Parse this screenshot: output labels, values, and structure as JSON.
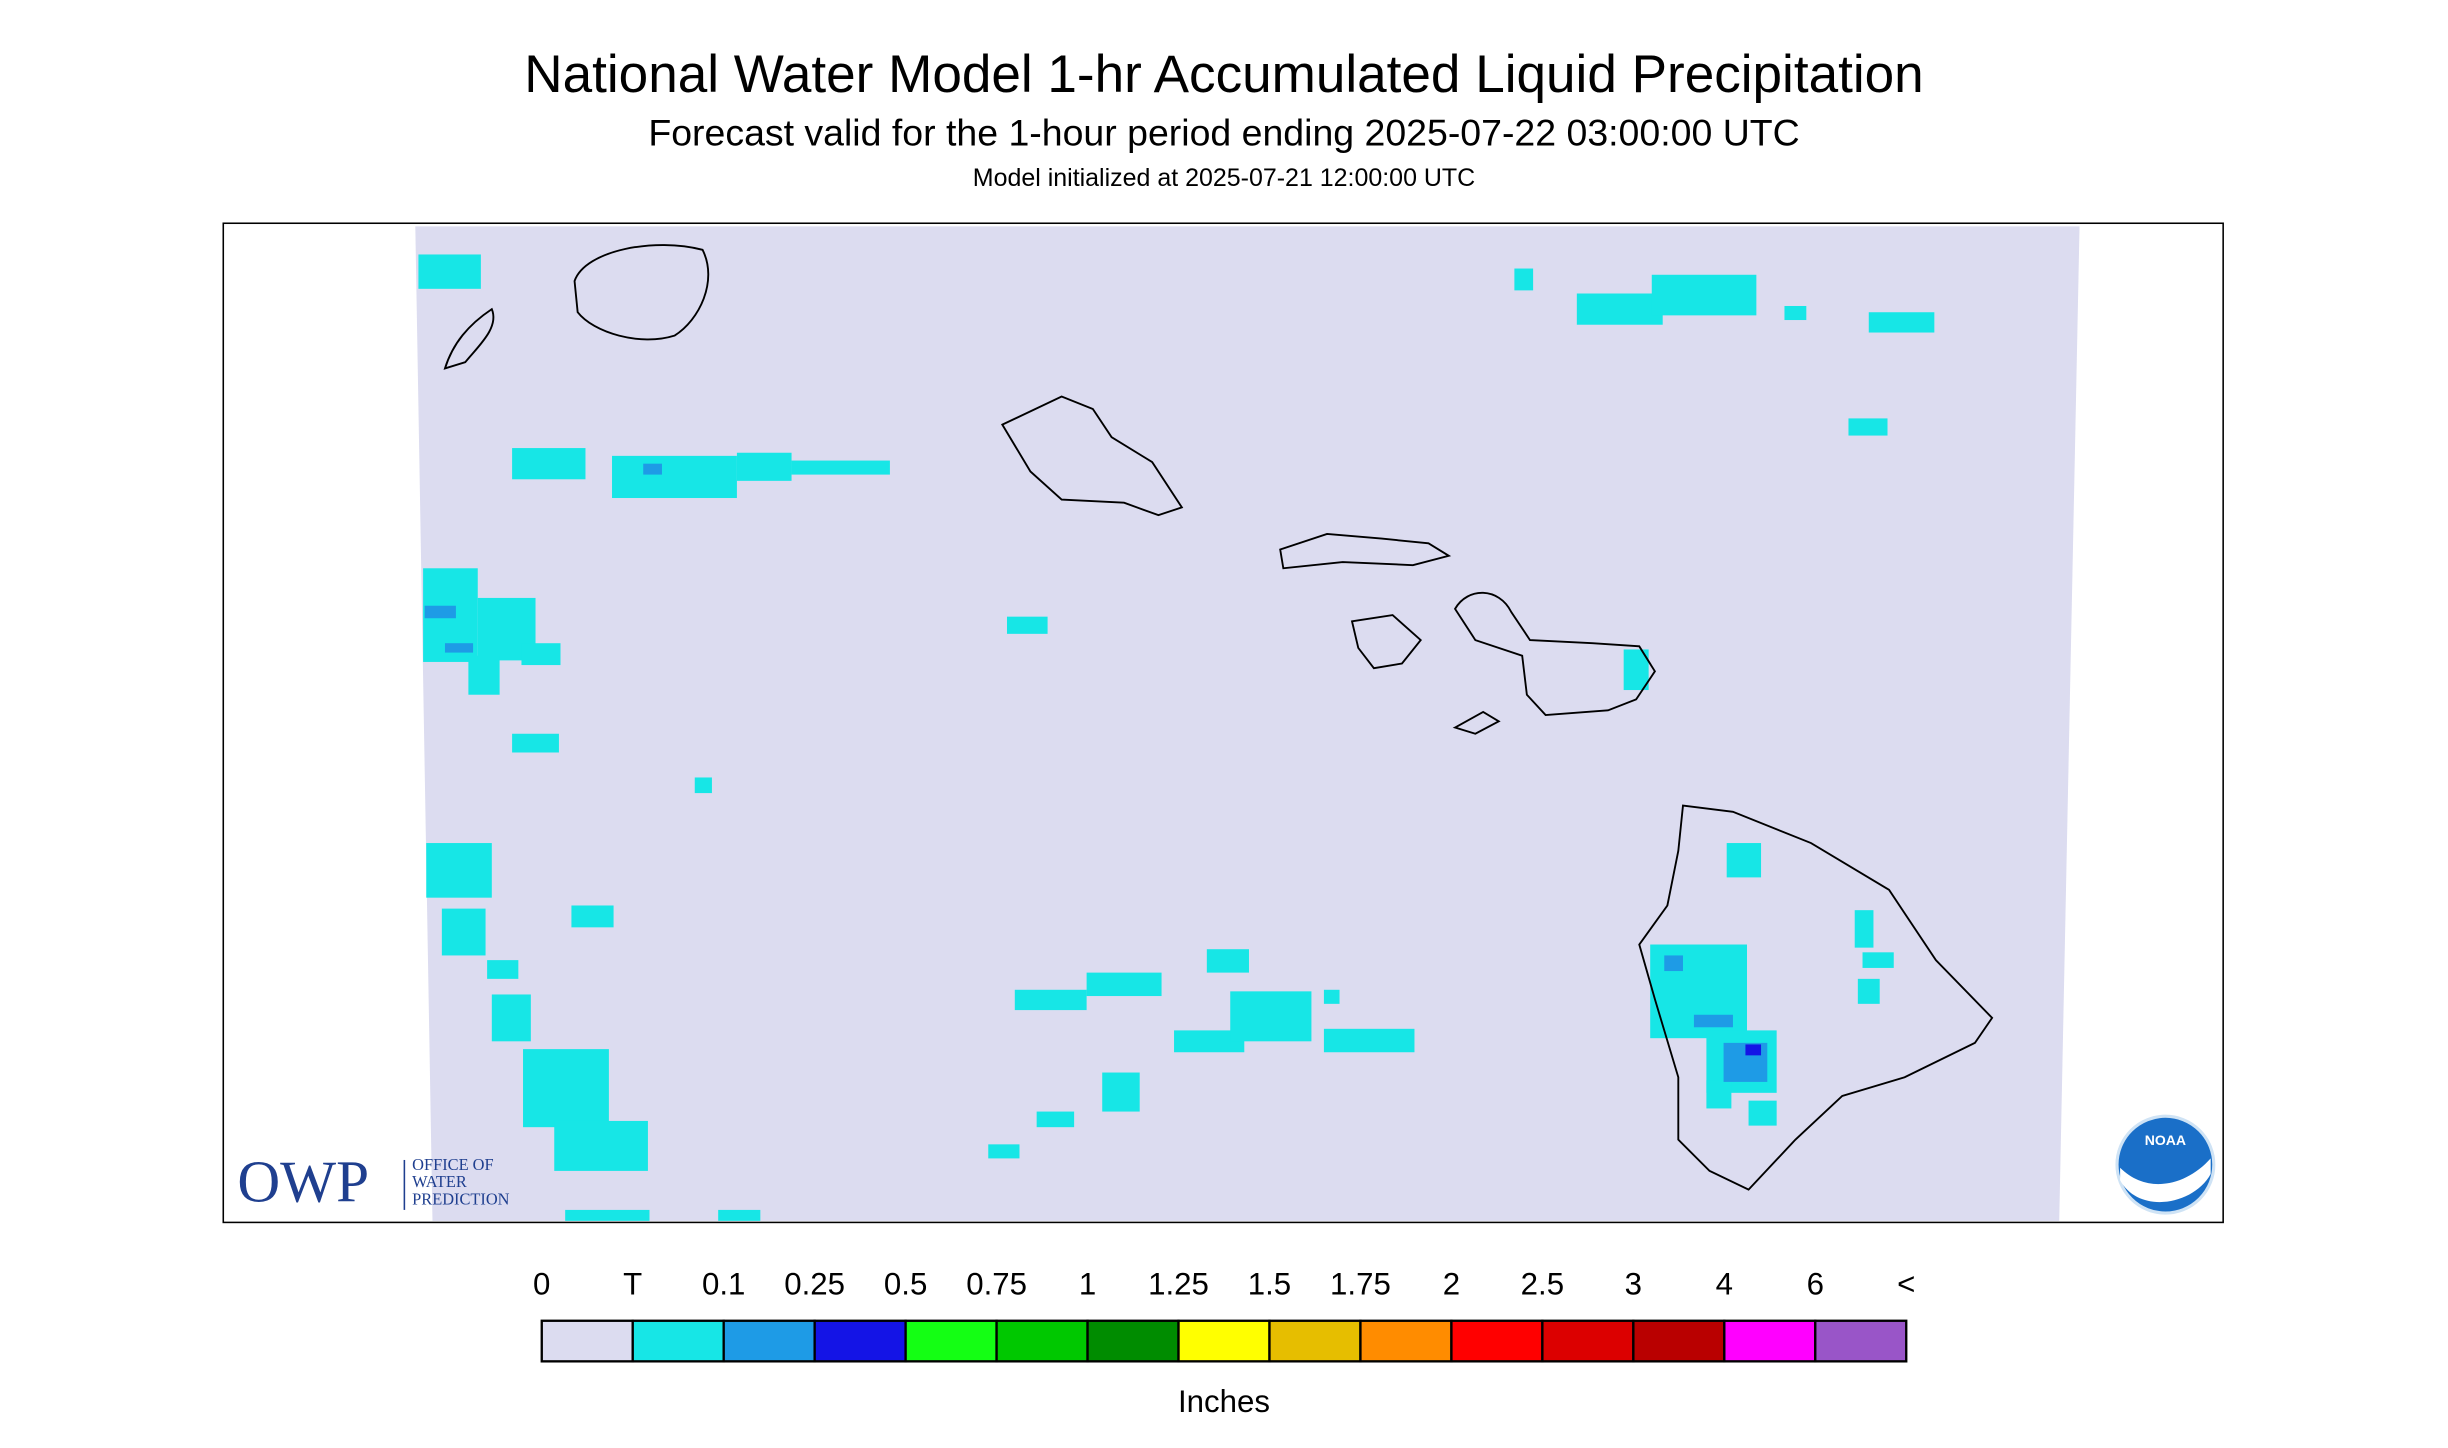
{
  "header": {
    "title": "National Water Model 1-hr Accumulated Liquid Precipitation",
    "subtitle": "Forecast valid for the 1-hour period ending 2025-07-22 03:00:00 UTC",
    "init": "Model initialized at 2025-07-21 12:00:00 UTC"
  },
  "legend": {
    "labels": [
      "0",
      "T",
      "0.1",
      "0.25",
      "0.5",
      "0.75",
      "1",
      "1.25",
      "1.5",
      "1.75",
      "2",
      "2.5",
      "3",
      "4",
      "6",
      "<"
    ],
    "colors": [
      "#dcdcf0",
      "#17e6e6",
      "#1e9be6",
      "#1414e6",
      "#14ff14",
      "#00c800",
      "#008c00",
      "#ffff00",
      "#e6be00",
      "#ff8c00",
      "#ff0000",
      "#dc0000",
      "#b90000",
      "#ff00ff",
      "#9955c8"
    ],
    "unit": "Inches"
  },
  "logos": {
    "owp": "OWP",
    "owp_lines": [
      "OFFICE OF",
      "WATER",
      "PREDICTION"
    ],
    "noaa": "NOAA"
  }
}
